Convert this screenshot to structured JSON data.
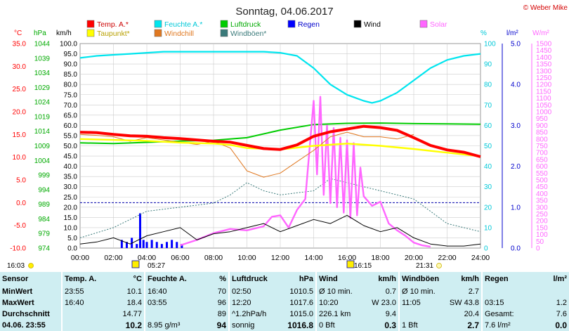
{
  "title": "Sonntag, 04.06.2017",
  "copyright": "© Weber Mike",
  "legend": [
    {
      "label": "Temp. A.*",
      "color": "#ff0000"
    },
    {
      "label": "Feuchte A.*",
      "color": "#00e5ee"
    },
    {
      "label": "Luftdruck",
      "color": "#00cc00"
    },
    {
      "label": "Regen",
      "color": "#0000ff"
    },
    {
      "label": "Wind",
      "color": "#000000"
    },
    {
      "label": "Solar",
      "color": "#ff66ff"
    },
    {
      "label": "Taupunkt*",
      "color": "#ffff00"
    },
    {
      "label": "Windchill",
      "color": "#e07820"
    },
    {
      "label": "Windböen*",
      "color": "#3a7a7a"
    }
  ],
  "axis_units": {
    "temp": "°C",
    "pressure": "hPa",
    "wind": "km/h",
    "humidity": "%",
    "rain": "l/m²",
    "solar": "W/m²"
  },
  "chart_data": {
    "type": "line",
    "x_label_ticks": [
      "00:00",
      "02:00",
      "04:00",
      "06:00",
      "08:00",
      "10:00",
      "12:00",
      "14:00",
      "16:00",
      "18:00",
      "20:00",
      "22:00",
      "24:00"
    ],
    "axes": {
      "temp_C": {
        "min": -10,
        "max": 35,
        "ticks": [
          "35.0",
          "30.0",
          "25.0",
          "20.0",
          "15.0",
          "10.0",
          "5.0",
          "0.0",
          "-5.0",
          "-10.0"
        ]
      },
      "pressure_hPa": {
        "min": 974,
        "max": 1044,
        "ticks": [
          "1044",
          "1039",
          "1034",
          "1029",
          "1024",
          "1019",
          "1014",
          "1009",
          "1004",
          "999",
          "994",
          "989",
          "984",
          "979",
          "974"
        ]
      },
      "wind_kmh": {
        "min": 0,
        "max": 100,
        "ticks": [
          "100.0",
          "95.0",
          "90.0",
          "85.0",
          "80.0",
          "75.0",
          "70.0",
          "65.0",
          "60.0",
          "55.0",
          "50.0",
          "45.0",
          "40.0",
          "35.0",
          "30.0",
          "25.0",
          "20.0",
          "15.0",
          "10.0",
          "5.0",
          "0.0"
        ]
      },
      "humidity_pct": {
        "min": 0,
        "max": 100,
        "ticks": [
          "100",
          "90",
          "80",
          "70",
          "60",
          "50",
          "40",
          "30",
          "20",
          "10",
          "0"
        ]
      },
      "rain_lm2": {
        "min": 0,
        "max": 5,
        "ticks": [
          "5.0",
          "4.0",
          "3.0",
          "2.0",
          "1.0",
          "0.0"
        ]
      },
      "solar_wm2": {
        "min": 0,
        "max": 1500,
        "ticks": [
          "1500",
          "1450",
          "1400",
          "1350",
          "1300",
          "1250",
          "1200",
          "1150",
          "1100",
          "1050",
          "1000",
          "950",
          "900",
          "850",
          "800",
          "750",
          "700",
          "650",
          "600",
          "550",
          "500",
          "450",
          "400",
          "350",
          "300",
          "250",
          "200",
          "150",
          "100",
          "50",
          "0"
        ]
      }
    },
    "series": [
      {
        "name": "Temp. A.*",
        "axis": "temp_C",
        "x": [
          0,
          1,
          2,
          3,
          4,
          5,
          6,
          7,
          8,
          9,
          10,
          11,
          12,
          13,
          14,
          15,
          16,
          17,
          18,
          19,
          20,
          21,
          22,
          23,
          24
        ],
        "values": [
          15.5,
          15.4,
          15.0,
          14.7,
          14.6,
          14.3,
          14.1,
          13.8,
          13.5,
          13.3,
          12.6,
          11.9,
          11.7,
          12.7,
          14.6,
          15.6,
          16.2,
          16.8,
          16.5,
          15.9,
          14.3,
          12.6,
          11.6,
          11.1,
          10.1
        ]
      },
      {
        "name": "Taupunkt*",
        "axis": "temp_C",
        "x": [
          0,
          2,
          4,
          6,
          8,
          9,
          10,
          12,
          14,
          16,
          18,
          20,
          22,
          24
        ],
        "values": [
          14.0,
          13.8,
          13.6,
          13.2,
          13.0,
          12.7,
          12.0,
          11.7,
          12.5,
          13.0,
          12.5,
          11.8,
          11.0,
          10.2
        ]
      },
      {
        "name": "Windchill",
        "axis": "temp_C",
        "x": [
          0,
          1,
          2,
          3,
          4,
          5,
          6,
          7,
          8,
          9,
          10,
          11,
          12,
          13,
          14,
          15,
          16,
          17,
          18,
          19,
          20
        ],
        "values": [
          15.0,
          14.8,
          14.5,
          13.5,
          14.3,
          13.8,
          13.3,
          12.8,
          13.5,
          12.0,
          7.0,
          5.6,
          6.5,
          9.0,
          11.5,
          14.5,
          15.5,
          14.5,
          14.5,
          14.0,
          15.0
        ]
      },
      {
        "name": "Feuchte A.*",
        "axis": "humidity_pct",
        "x": [
          0,
          1,
          2,
          3,
          4,
          5,
          6,
          7,
          8,
          9,
          10,
          11,
          12,
          13,
          14,
          15,
          16,
          17,
          17.5,
          18,
          19,
          20,
          21,
          22,
          23,
          24
        ],
        "values": [
          93,
          94,
          94.5,
          95,
          95.5,
          96,
          96,
          96,
          96,
          96,
          96,
          96,
          95.5,
          94,
          88,
          80,
          75,
          72,
          71,
          72,
          76,
          82,
          88,
          92,
          94,
          95
        ]
      },
      {
        "name": "Luftdruck",
        "axis": "pressure_hPa",
        "x": [
          0,
          2,
          4,
          6,
          8,
          10,
          12,
          14,
          16,
          18,
          20,
          22,
          24
        ],
        "values": [
          1010.0,
          1009.8,
          1010.2,
          1010.6,
          1010.9,
          1011.8,
          1014.4,
          1016.3,
          1016.7,
          1016.8,
          1016.6,
          1016.5,
          1016.4
        ]
      },
      {
        "name": "Wind",
        "axis": "wind_kmh",
        "x": [
          0,
          1,
          2,
          3,
          4,
          5,
          6,
          7,
          8,
          9,
          10,
          11,
          12,
          13,
          14,
          15,
          16,
          17,
          18,
          19,
          20,
          21,
          22,
          23,
          24
        ],
        "values": [
          2,
          3,
          5,
          2,
          6,
          8,
          10,
          4,
          7,
          8,
          10,
          12,
          8,
          11,
          14,
          12,
          16,
          11,
          8,
          10,
          5,
          2,
          1,
          1,
          2
        ]
      },
      {
        "name": "Windböen*",
        "axis": "wind_kmh",
        "x": [
          0,
          2,
          4,
          6,
          8,
          9,
          10,
          11,
          12,
          14,
          15,
          16,
          17,
          18,
          19,
          20,
          21,
          22,
          23,
          24
        ],
        "values": [
          5,
          10,
          18,
          20,
          22,
          26,
          32,
          28,
          26,
          28,
          34,
          32,
          30,
          28,
          26,
          24,
          18,
          12,
          10,
          8
        ]
      },
      {
        "name": "Solar",
        "axis": "solar_wm2",
        "x": [
          6,
          7,
          8,
          9,
          10,
          11,
          11.5,
          12,
          12.5,
          13,
          13.5,
          14,
          14.2,
          14.4,
          14.6,
          14.8,
          15,
          15.2,
          15.4,
          15.6,
          15.8,
          16,
          16.2,
          16.4,
          16.6,
          16.8,
          17,
          17.5,
          18,
          18.5,
          19,
          19.5,
          20,
          20.5,
          21
        ],
        "values": [
          20,
          60,
          110,
          140,
          130,
          160,
          230,
          240,
          150,
          280,
          360,
          1080,
          540,
          1110,
          390,
          900,
          330,
          880,
          300,
          810,
          260,
          790,
          220,
          770,
          240,
          590,
          380,
          310,
          340,
          180,
          130,
          90,
          40,
          20,
          10
        ]
      },
      {
        "name": "Regen",
        "axis": "rain_lm2",
        "x": [
          2.5,
          2.8,
          3.1,
          3.4,
          3.6,
          3.8,
          4.0,
          4.3,
          4.6,
          4.9,
          5.2,
          5.5,
          5.8,
          6.1
        ],
        "values": [
          0.2,
          0.15,
          0.25,
          0.1,
          0.85,
          0.2,
          0.15,
          0.2,
          0.15,
          0.1,
          0.15,
          0.2,
          0.15,
          0.1
        ]
      }
    ]
  },
  "sun_events": {
    "sunrise": "05:27",
    "sunset": "21:31",
    "left_time": "16:03",
    "max_time": "16:15"
  },
  "stats": {
    "headers": [
      "Sensor",
      "Temp. A.",
      "°C",
      "Feuchte A.",
      "%",
      "Luftdruck",
      "hPa",
      "Wind",
      "km/h",
      "Windböen",
      "km/h",
      "Regen",
      "l/m²"
    ],
    "rows": [
      [
        "MinWert",
        "23:55",
        "10.1",
        "16:40",
        "70",
        "02:50",
        "1010.5",
        "Ø 10 min.",
        "0.7",
        "Ø 10 min.",
        "2.7",
        "",
        ""
      ],
      [
        "MaxWert",
        "16:40",
        "18.4",
        "03:55",
        "96",
        "12:20",
        "1017.6",
        "10:20",
        "W 23.0",
        "11:05",
        "SW 43.8",
        "03:15",
        "1.2"
      ],
      [
        "Durchschnitt",
        "",
        "14.77",
        "",
        "89",
        "^1.2hPa/h",
        "1015.0",
        "226.1 km",
        "9.4",
        "",
        "20.4",
        "Gesamt:",
        "7.6"
      ],
      [
        "04.06. 23:55",
        "",
        "10.2",
        "8.95 g/m³",
        "94",
        "sonnig",
        "1016.8",
        "0 Bft",
        "0.3",
        "1 Bft",
        "2.7",
        "7.6 l/m²",
        "0.0"
      ]
    ]
  }
}
